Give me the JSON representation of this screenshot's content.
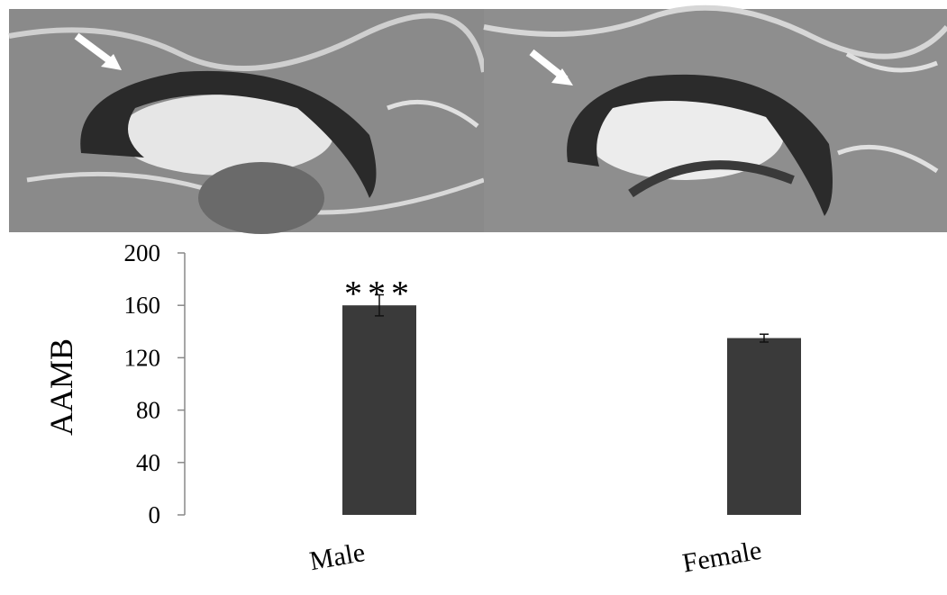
{
  "chart_data": {
    "type": "bar",
    "ylabel": "AAMB",
    "categories": [
      "Male",
      "Female"
    ],
    "values": [
      160,
      135
    ],
    "errors": [
      8,
      3
    ],
    "annotation": "***",
    "color": "#3a3a3a",
    "ylim": [
      0,
      200
    ],
    "yticks": [
      0,
      40,
      80,
      120,
      160,
      200
    ],
    "grid": false
  }
}
